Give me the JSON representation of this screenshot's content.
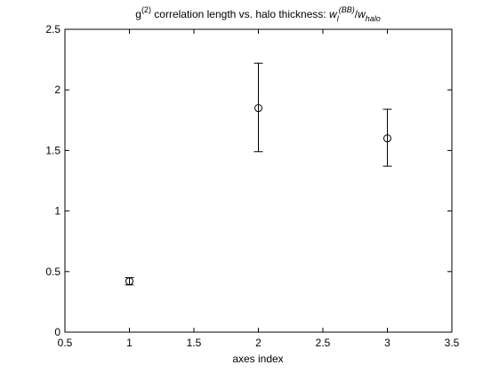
{
  "chart_data": {
    "type": "scatter",
    "title": {
      "prefix": "g",
      "superscript": "(2)",
      "main": " correlation length vs. halo thickness:  ",
      "math_w": "w",
      "math_sub_l": "l",
      "math_sup_bb": "(BB)",
      "math_slash": "/",
      "math_w2": "w",
      "math_sub_halo": "halo"
    },
    "xlabel": "axes index",
    "ylabel": "",
    "xlim": [
      0.5,
      3.5
    ],
    "ylim": [
      0,
      2.5
    ],
    "xticks": [
      "0.5",
      "1",
      "1.5",
      "2",
      "2.5",
      "3",
      "3.5"
    ],
    "yticks": [
      "0",
      "0.5",
      "1",
      "1.5",
      "2",
      "2.5"
    ],
    "grid": false,
    "series": [
      {
        "points": [
          {
            "x": 1,
            "y": 0.42,
            "err_low": 0.39,
            "err_high": 0.45
          },
          {
            "x": 2,
            "y": 1.85,
            "err_low": 1.49,
            "err_high": 2.22
          },
          {
            "x": 3,
            "y": 1.6,
            "err_low": 1.37,
            "err_high": 1.84
          }
        ],
        "marker": "circle",
        "color": "#000000"
      }
    ]
  }
}
